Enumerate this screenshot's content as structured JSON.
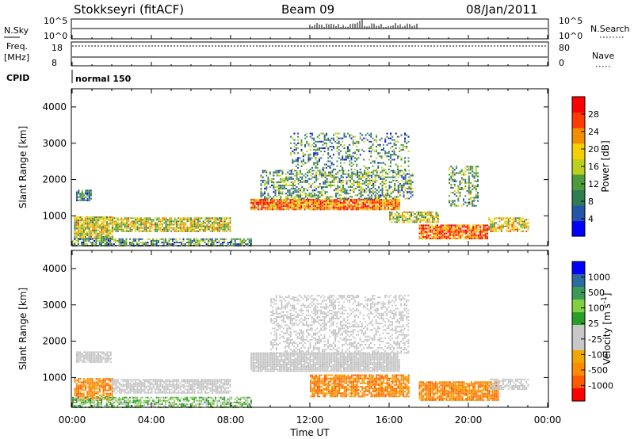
{
  "header": {
    "station": "Stokkseyri (fitACF)",
    "beam": "Beam 09",
    "date": "08/Jan/2011"
  },
  "panels": {
    "noise": {
      "left_label": "N.Sky",
      "right_label": "N.Search",
      "left_ticks": [
        "10^5",
        "10^0"
      ],
      "right_ticks": [
        "10^5",
        "10^0"
      ]
    },
    "freq": {
      "left_label_line1": "Freq.",
      "left_label_line2": "[MHz]",
      "right_label": "Nave",
      "left_ticks": [
        "18",
        "8"
      ],
      "right_ticks": [
        "80",
        "0"
      ]
    },
    "cpid": {
      "label": "CPID",
      "text": "normal 150"
    }
  },
  "colors": {
    "power": [
      "#0000ff",
      "#2554a8",
      "#2e7d50",
      "#4c9a3c",
      "#bcd020",
      "#f7d000",
      "#f28e00",
      "#ff3b00",
      "#ff0000"
    ],
    "velocity": [
      "#ff0000",
      "#ff5a00",
      "#ff8c00",
      "#f0a800",
      "#c8c8c8",
      "#c8c8c8",
      "#28a028",
      "#80d040",
      "#3c9a58",
      "#2a6ca0",
      "#0000ff"
    ]
  },
  "chart_data": [
    {
      "type": "heatmap",
      "name_quantity": "Power",
      "xlabel": "",
      "ylabel": "Slant Range [km]",
      "x_ticks": [
        "00:00",
        "04:00",
        "08:00",
        "12:00",
        "16:00",
        "20:00",
        "00:00"
      ],
      "y_ticks": [
        "1000",
        "2000",
        "3000",
        "4000"
      ],
      "ylim": [
        180,
        4500
      ],
      "colorbar": {
        "label": "Power [dB]",
        "ticks": [
          "4",
          "8",
          "12",
          "16",
          "20",
          "24",
          "28"
        ],
        "range": [
          0,
          30
        ]
      },
      "scatter_regions": [
        {
          "t": [
            0.1,
            2.0
          ],
          "r": [
            400,
            1000
          ],
          "density": 0.9,
          "level": 0.55
        },
        {
          "t": [
            0.2,
            1.0
          ],
          "r": [
            1450,
            1750
          ],
          "density": 0.8,
          "level": 0.25
        },
        {
          "t": [
            2.0,
            8.0
          ],
          "r": [
            600,
            1000
          ],
          "density": 0.8,
          "level": 0.55
        },
        {
          "t": [
            0.0,
            9.0
          ],
          "r": [
            200,
            400
          ],
          "density": 0.7,
          "level": 0.3
        },
        {
          "t": [
            9.0,
            16.5
          ],
          "r": [
            1200,
            1500
          ],
          "density": 0.95,
          "level": 0.75
        },
        {
          "t": [
            9.5,
            17.2
          ],
          "r": [
            1500,
            2300
          ],
          "density": 0.5,
          "level": 0.35
        },
        {
          "t": [
            11.0,
            17.0
          ],
          "r": [
            2300,
            3300
          ],
          "density": 0.3,
          "level": 0.3
        },
        {
          "t": [
            17.5,
            21.0
          ],
          "r": [
            400,
            800
          ],
          "density": 0.9,
          "level": 0.8
        },
        {
          "t": [
            16.0,
            18.5
          ],
          "r": [
            850,
            1150
          ],
          "density": 0.7,
          "level": 0.5
        },
        {
          "t": [
            21.0,
            23.0
          ],
          "r": [
            600,
            1000
          ],
          "density": 0.7,
          "level": 0.6
        },
        {
          "t": [
            19.0,
            20.5
          ],
          "r": [
            1300,
            2400
          ],
          "density": 0.4,
          "level": 0.35
        }
      ]
    },
    {
      "type": "heatmap",
      "name_quantity": "Velocity",
      "xlabel": "Time UT",
      "ylabel": "Slant Range [km]",
      "x_ticks": [
        "00:00",
        "04:00",
        "08:00",
        "12:00",
        "16:00",
        "20:00",
        "00:00"
      ],
      "y_ticks": [
        "1000",
        "2000",
        "3000",
        "4000"
      ],
      "ylim": [
        180,
        4500
      ],
      "colorbar": {
        "label": "Velocity [m s^-1]",
        "ticks": [
          "1000",
          "500",
          "100",
          "25",
          "-25",
          "-100",
          "-500",
          "-1000"
        ],
        "range": [
          -1200,
          1200
        ]
      },
      "scatter_regions": [
        {
          "t": [
            0.2,
            2.0
          ],
          "r": [
            1450,
            1750
          ],
          "density": 0.9,
          "vel": "grey"
        },
        {
          "t": [
            0.1,
            2.0
          ],
          "r": [
            400,
            1000
          ],
          "density": 0.8,
          "vel": "orange"
        },
        {
          "t": [
            2.0,
            8.0
          ],
          "r": [
            600,
            1000
          ],
          "density": 0.8,
          "vel": "grey"
        },
        {
          "t": [
            0.0,
            9.0
          ],
          "r": [
            200,
            500
          ],
          "density": 0.7,
          "vel": "green"
        },
        {
          "t": [
            9.0,
            16.5
          ],
          "r": [
            1200,
            1700
          ],
          "density": 0.95,
          "vel": "grey"
        },
        {
          "t": [
            10.0,
            17.0
          ],
          "r": [
            1700,
            3300
          ],
          "density": 0.4,
          "vel": "grey"
        },
        {
          "t": [
            12.0,
            17.0
          ],
          "r": [
            500,
            1100
          ],
          "density": 0.8,
          "vel": "orange"
        },
        {
          "t": [
            17.5,
            21.5
          ],
          "r": [
            400,
            900
          ],
          "density": 0.9,
          "vel": "orange"
        },
        {
          "t": [
            21.0,
            23.0
          ],
          "r": [
            700,
            1000
          ],
          "density": 0.7,
          "vel": "grey"
        }
      ]
    }
  ]
}
